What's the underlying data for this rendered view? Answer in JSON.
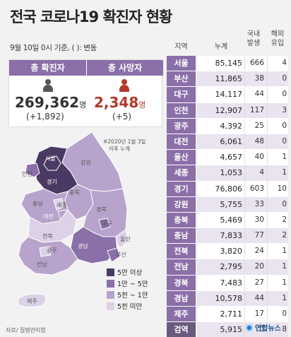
{
  "title": "전국 코로나19 확진자 현황",
  "subtitle": "9월 10일 0시 기준, ( ): 변동",
  "confirmed": {
    "label": "총 확진자",
    "value": "269,362",
    "unit": "명",
    "change": "(+1,892)"
  },
  "deaths": {
    "label": "총 사망자",
    "value": "2,348",
    "unit": "명",
    "change": "(+5)"
  },
  "note_line1": "※2020년 1월 3일",
  "note_line2": "이후 누계",
  "table_headers": {
    "region": "지역",
    "total": "누계",
    "domestic_l1": "국내",
    "domestic_l2": "발생",
    "overseas_l1": "해외",
    "overseas_l2": "유입"
  },
  "rows": [
    {
      "region": "서울",
      "total": "85,145",
      "domestic": "666",
      "overseas": "4"
    },
    {
      "region": "부산",
      "total": "11,865",
      "domestic": "38",
      "overseas": "0"
    },
    {
      "region": "대구",
      "total": "14,117",
      "domestic": "44",
      "overseas": "0"
    },
    {
      "region": "인천",
      "total": "12,907",
      "domestic": "117",
      "overseas": "3"
    },
    {
      "region": "광주",
      "total": "4,392",
      "domestic": "25",
      "overseas": "0"
    },
    {
      "region": "대전",
      "total": "6,061",
      "domestic": "48",
      "overseas": "0"
    },
    {
      "region": "울산",
      "total": "4,657",
      "domestic": "40",
      "overseas": "1"
    },
    {
      "region": "세종",
      "total": "1,053",
      "domestic": "4",
      "overseas": "1"
    },
    {
      "region": "경기",
      "total": "76,806",
      "domestic": "603",
      "overseas": "10"
    },
    {
      "region": "강원",
      "total": "5,755",
      "domestic": "33",
      "overseas": "0"
    },
    {
      "region": "충북",
      "total": "5,469",
      "domestic": "30",
      "overseas": "2"
    },
    {
      "region": "충남",
      "total": "7,833",
      "domestic": "77",
      "overseas": "2"
    },
    {
      "region": "전북",
      "total": "3,820",
      "domestic": "24",
      "overseas": "1"
    },
    {
      "region": "전남",
      "total": "2,795",
      "domestic": "20",
      "overseas": "1"
    },
    {
      "region": "경북",
      "total": "7,483",
      "domestic": "27",
      "overseas": "1"
    },
    {
      "region": "경남",
      "total": "10,578",
      "domestic": "44",
      "overseas": "1"
    },
    {
      "region": "제주",
      "total": "2,711",
      "domestic": "17",
      "overseas": "0"
    },
    {
      "region": "검역",
      "total": "5,915",
      "domestic": "0",
      "overseas": "8"
    }
  ],
  "map_labels": {
    "seoul": "서울",
    "incheon": "인천",
    "gyeonggi": "경기",
    "gangwon": "강원",
    "chungbuk": "충북",
    "sejong": "세종",
    "chungnam": "충남",
    "daejeon": "대전",
    "gyeongbuk": "경북",
    "daegu": "대구",
    "jeonbuk": "전북",
    "gwangju": "광주",
    "ulsan": "울산",
    "gyeongnam": "경남",
    "busan": "부산",
    "jeonnam": "전남",
    "jeju": "제주"
  },
  "legend": [
    {
      "label": "5만 이상",
      "color": "#4a3a63"
    },
    {
      "label": "1만 ~ 5만",
      "color": "#8a6fa8"
    },
    {
      "label": "5천 ~ 1만",
      "color": "#b7a3cb"
    },
    {
      "label": "5천 미만",
      "color": "#dcd1e6"
    }
  ],
  "source": "자료/ 질병관리청",
  "logo": "연합뉴스"
}
